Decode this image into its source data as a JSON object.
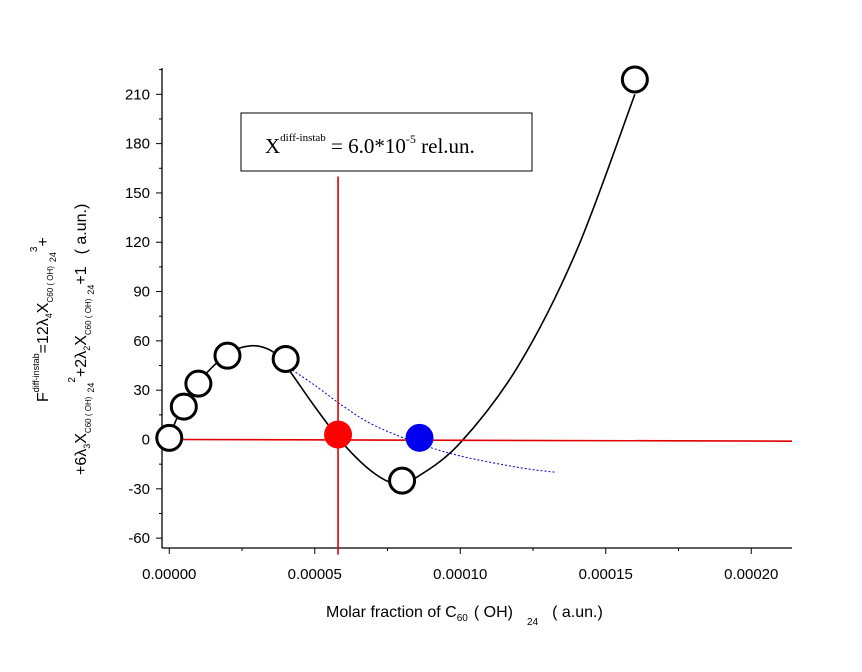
{
  "chart_data": {
    "type": "scatter",
    "title": "",
    "xlabel": {
      "main": "Molar fraction of C",
      "sub1": "60",
      "mid": "( OH)",
      "sub2": "24",
      "tail": "( a.un.)"
    },
    "ylabel": {
      "line1": {
        "t1": "F",
        "sup1": "diff-instab",
        "t2": "=12λ",
        "sub1": "4",
        "t3": "X",
        "sub2": "C60 ( OH)",
        "sub3": "24",
        "sup2": "3",
        "t4": "+"
      },
      "line2": {
        "t1": "+6λ",
        "sub1": "3",
        "t2": "X",
        "sub2": "C60 ( OH)",
        "sub3": "24",
        "sup1": "2",
        "t3": "+2λ",
        "sub4": "2",
        "t4": "X",
        "sub5": "C60 ( OH)",
        "sub6": "24",
        "t5": "+1",
        "t6": "( a.un.)"
      }
    },
    "xlim": [
      -2.5e-06,
      0.000214
    ],
    "ylim": [
      -66,
      226
    ],
    "x_ticks": [
      0,
      5e-05,
      0.0001,
      0.00015,
      0.0002
    ],
    "x_tick_labels": [
      "0.00000",
      "0.00005",
      "0.00010",
      "0.00015",
      "0.00020"
    ],
    "y_ticks": [
      -60,
      -30,
      0,
      30,
      60,
      90,
      120,
      150,
      180,
      210
    ],
    "y_tick_labels": [
      "-60",
      "-30",
      "0",
      "30",
      "60",
      "90",
      "120",
      "150",
      "180",
      "210"
    ],
    "series": [
      {
        "name": "data points",
        "marker": "open-circle",
        "color": "#000000",
        "points": [
          [
            0,
            1
          ],
          [
            5e-06,
            20
          ],
          [
            1e-05,
            34
          ],
          [
            2e-05,
            51
          ],
          [
            4e-05,
            49
          ],
          [
            8e-05,
            -25
          ],
          [
            0.00016,
            219
          ]
        ]
      },
      {
        "name": "fitted curve",
        "style": "solid-line",
        "color": "#000000",
        "points": [
          [
            0,
            2
          ],
          [
            5e-06,
            22
          ],
          [
            1e-05,
            35
          ],
          [
            2e-05,
            52
          ],
          [
            2.8e-05,
            57
          ],
          [
            3.5e-05,
            54
          ],
          [
            4e-05,
            45
          ],
          [
            5e-05,
            20
          ],
          [
            6e-05,
            -3
          ],
          [
            7e-05,
            -20
          ],
          [
            7.8e-05,
            -27
          ],
          [
            8.5e-05,
            -23
          ],
          [
            0.0001,
            -2
          ],
          [
            0.00012,
            45
          ],
          [
            0.00014,
            115
          ],
          [
            0.00016,
            210
          ]
        ]
      },
      {
        "name": "dotted curve",
        "style": "dotted-line",
        "color": "#0000cc",
        "points": [
          [
            4e-05,
            45
          ],
          [
            5e-05,
            33
          ],
          [
            6e-05,
            20
          ],
          [
            7e-05,
            9
          ],
          [
            8.5e-05,
            -2
          ],
          [
            0.0001,
            -10
          ],
          [
            0.00012,
            -17
          ],
          [
            0.000133,
            -20
          ]
        ]
      },
      {
        "name": "horizontal line",
        "style": "solid-line",
        "color": "#e00000",
        "points": [
          [
            0,
            0
          ],
          [
            0.000214,
            -1
          ]
        ]
      },
      {
        "name": "vertical line",
        "style": "solid-line",
        "color": "#e00000",
        "points": [
          [
            5.8e-05,
            -70
          ],
          [
            5.8e-05,
            160
          ]
        ]
      },
      {
        "name": "red point",
        "marker": "filled-circle",
        "color": "#ff0000",
        "points": [
          [
            5.8e-05,
            3
          ]
        ]
      },
      {
        "name": "blue point",
        "marker": "filled-circle",
        "color": "#0000ee",
        "points": [
          [
            8.6e-05,
            1
          ]
        ]
      }
    ],
    "annotation": {
      "base": "X",
      "sup": "diff-instab",
      "mid": " = 6.0*10",
      "exp": "-5",
      "tail": " rel.un."
    }
  }
}
